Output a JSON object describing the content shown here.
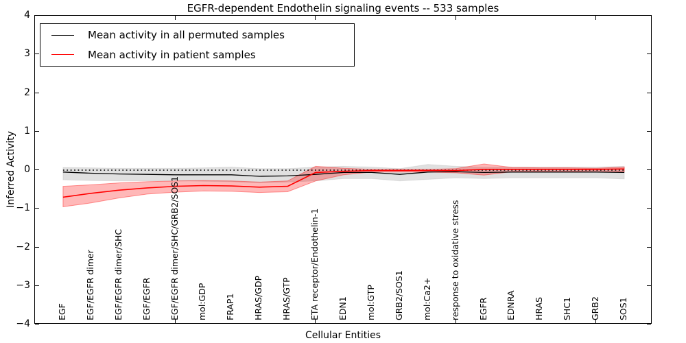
{
  "title": "EGFR-dependent Endothelin signaling events -- 533 samples",
  "legend": {
    "items": [
      {
        "label": "Mean activity in all permuted samples",
        "color": "#000000"
      },
      {
        "label": "Mean activity in patient samples",
        "color": "#ff0000"
      }
    ],
    "position": "upper left"
  },
  "axes": {
    "xlabel": "Cellular Entities",
    "ylabel": "Inferred Activity",
    "ylim": [
      -4,
      4
    ],
    "xlim": [
      0,
      22
    ],
    "yticks": [
      {
        "label": "4",
        "value": 4
      },
      {
        "label": "3",
        "value": 3
      },
      {
        "label": "2",
        "value": 2
      },
      {
        "label": "1",
        "value": 1
      },
      {
        "label": "0",
        "value": 0
      },
      {
        "label": "−1",
        "value": -1
      },
      {
        "label": "−2",
        "value": -2
      },
      {
        "label": "−3",
        "value": -3
      },
      {
        "label": "−4",
        "value": -4
      }
    ],
    "xtick_values": [
      5,
      10,
      15,
      20
    ],
    "frame_color": "#000000"
  },
  "chart_data": {
    "type": "line",
    "title": "EGFR-dependent Endothelin signaling events -- 533 samples",
    "xlabel": "Cellular Entities",
    "ylabel": "Inferred Activity",
    "ylim": [
      -4,
      4
    ],
    "grid": false,
    "legend_position": "upper left",
    "reference_line": {
      "y": 0,
      "style": "dotted",
      "color": "#000000"
    },
    "categories": [
      "EGF",
      "EGF/EGFR dimer",
      "EGF/EGFR dimer/SHC",
      "EGF/EGFR",
      "EGF/EGFR dimer/SHC/GRB2/SOS1",
      "mol:GDP",
      "FRAP1",
      "HRAS/GDP",
      "HRAS/GTP",
      "ETA receptor/Endothelin-1",
      "EDN1",
      "mol:GTP",
      "GRB2/SOS1",
      "mol:Ca2+",
      "response to oxidative stress",
      "EGFR",
      "EDNRA",
      "HRAS",
      "SHC1",
      "GRB2",
      "SOS1"
    ],
    "series": [
      {
        "name": "Mean activity in all permuted samples",
        "color": "#000000",
        "line_width": 1.3,
        "band_color": "rgba(0,0,0,0.12)",
        "band_edge_color": "rgba(0,0,0,0.08)",
        "values": [
          -0.05,
          -0.08,
          -0.1,
          -0.11,
          -0.12,
          -0.12,
          -0.12,
          -0.16,
          -0.15,
          -0.11,
          -0.06,
          -0.06,
          -0.11,
          -0.05,
          -0.04,
          -0.06,
          -0.05,
          -0.05,
          -0.05,
          -0.05,
          -0.06
        ],
        "band_upper": [
          0.07,
          0.06,
          0.05,
          0.05,
          0.05,
          0.06,
          0.08,
          0.04,
          0.04,
          0.08,
          0.1,
          0.08,
          0.04,
          0.15,
          0.1,
          0.08,
          0.08,
          0.08,
          0.08,
          0.08,
          0.1
        ],
        "band_lower": [
          -0.25,
          -0.27,
          -0.28,
          -0.28,
          -0.28,
          -0.29,
          -0.3,
          -0.33,
          -0.31,
          -0.28,
          -0.22,
          -0.22,
          -0.28,
          -0.24,
          -0.2,
          -0.22,
          -0.2,
          -0.2,
          -0.2,
          -0.2,
          -0.23
        ]
      },
      {
        "name": "Mean activity in patient samples",
        "color": "#ff0000",
        "line_width": 1.6,
        "band_color": "rgba(255,0,0,0.28)",
        "band_edge_color": "rgba(255,0,0,0.40)",
        "values": [
          -0.7,
          -0.6,
          -0.52,
          -0.46,
          -0.42,
          -0.4,
          -0.41,
          -0.44,
          -0.42,
          -0.06,
          -0.03,
          -0.01,
          -0.01,
          -0.01,
          -0.01,
          0.02,
          0.02,
          0.02,
          0.02,
          0.02,
          0.03
        ],
        "band_upper": [
          -0.42,
          -0.38,
          -0.33,
          -0.3,
          -0.28,
          -0.27,
          -0.28,
          -0.31,
          -0.28,
          0.1,
          0.05,
          0.02,
          0.02,
          0.02,
          0.04,
          0.16,
          0.07,
          0.06,
          0.06,
          0.05,
          0.08
        ],
        "band_lower": [
          -0.95,
          -0.85,
          -0.72,
          -0.62,
          -0.57,
          -0.54,
          -0.55,
          -0.58,
          -0.56,
          -0.28,
          -0.12,
          -0.05,
          -0.05,
          -0.05,
          -0.07,
          -0.13,
          -0.04,
          -0.03,
          -0.03,
          -0.02,
          -0.04
        ]
      }
    ]
  }
}
